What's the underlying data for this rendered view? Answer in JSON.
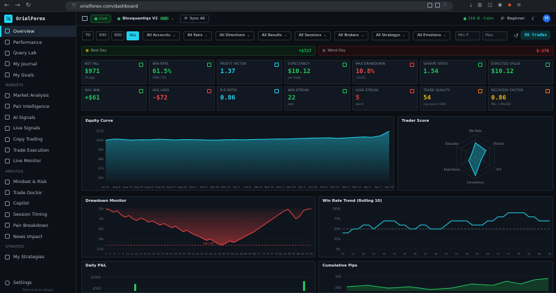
{
  "browser": {
    "url": "orielforex.com/dashboard"
  },
  "brand": {
    "name": "OrielForex"
  },
  "sidebar": {
    "top_items": [
      {
        "label": "Overview",
        "icon": "grid-icon",
        "active": true
      },
      {
        "label": "Performance",
        "icon": "chart-icon"
      },
      {
        "label": "Query Lab",
        "icon": "flask-icon"
      },
      {
        "label": "My Journal",
        "icon": "book-icon"
      },
      {
        "label": "My Goals",
        "icon": "target-icon"
      }
    ],
    "market_label": "MARKETS",
    "market_items": [
      {
        "label": "Market Analysis",
        "icon": "analysis-icon"
      },
      {
        "label": "Pair Intelligence",
        "icon": "brain-icon"
      },
      {
        "label": "AI Signals",
        "icon": "signal-icon"
      },
      {
        "label": "Live Signals",
        "icon": "pulse-icon"
      },
      {
        "label": "Copy Trading",
        "icon": "copy-icon"
      },
      {
        "label": "Trade Execution",
        "icon": "execute-icon"
      },
      {
        "label": "Live Monitor",
        "icon": "monitor-icon"
      }
    ],
    "analysis_label": "ANALYSIS",
    "analysis_items": [
      {
        "label": "Mindset & Risk",
        "icon": "mind-icon"
      },
      {
        "label": "Trade Doctor",
        "icon": "doctor-icon"
      },
      {
        "label": "Copilot",
        "icon": "copilot-icon"
      },
      {
        "label": "Session Timing",
        "icon": "clock-icon"
      },
      {
        "label": "Pair Breakdown",
        "icon": "breakdown-icon"
      },
      {
        "label": "News Impact",
        "icon": "news-icon"
      }
    ],
    "strategy_label": "STRATEGY",
    "strategy_items": [
      {
        "label": "My Strategies",
        "icon": "strategy-icon"
      }
    ],
    "settings_label": "Settings",
    "byline": "Press to ⌘ to collapse"
  },
  "topbar": {
    "live_label": "Live",
    "account_label": "Bloxquantiqx V2",
    "account_tag": "LIVE",
    "sync_label": "Sync All",
    "status_label": "116 ⚙ · Calm",
    "level_label": "Beginner",
    "avatar_initial": "M"
  },
  "filters": {
    "ranges": [
      "7D",
      "30D",
      "90D",
      "ALL"
    ],
    "active_range": "ALL",
    "dropdowns": [
      "All Accounts",
      "All Pairs",
      "All Directions",
      "All Results",
      "All Sessions",
      "All Brokers",
      "All Strategys",
      "All Emotions"
    ],
    "min_placeholder": "Min P",
    "max_placeholder": "Max",
    "trades_badge": "96 trades"
  },
  "best_day": {
    "label": "Best Day",
    "value": "+$727"
  },
  "worst_day": {
    "label": "Worst Day",
    "value": "$-270"
  },
  "kpis": [
    {
      "label": "NET P&L",
      "value": "$971",
      "sub": "14 pips",
      "color": "#22c55e",
      "icon_color": "#22c55e"
    },
    {
      "label": "WIN RATE",
      "value": "61.5%",
      "sub": "59W / 37L",
      "color": "#22c55e",
      "icon_color": "#22c55e"
    },
    {
      "label": "PROFIT FACTOR",
      "value": "1.37",
      "sub": "",
      "color": "#22d3ee",
      "icon_color": "#22d3ee"
    },
    {
      "label": "EXPECTANCY",
      "value": "$10.12",
      "sub": "per trade",
      "color": "#22c55e",
      "icon_color": "#22c55e"
    },
    {
      "label": "MAX DRAWDOWN",
      "value": "10.8%",
      "sub": "-$1121",
      "color": "#ef4444",
      "icon_color": "#ef4444"
    },
    {
      "label": "SHARPE RATIO",
      "value": "1.54",
      "sub": "",
      "color": "#22c55e",
      "icon_color": "#22c55e"
    },
    {
      "label": "EXPECTED VALUE",
      "value": "$10.12",
      "sub": "",
      "color": "#22c55e",
      "icon_color": "#22c55e"
    },
    {
      "label": "AVG WIN",
      "value": "+$61",
      "sub": "",
      "color": "#22c55e",
      "icon_color": "#22c55e"
    },
    {
      "label": "AVG LOSS",
      "value": "-$72",
      "sub": "",
      "color": "#ef4444",
      "icon_color": "#ef4444"
    },
    {
      "label": "R:R RATIO",
      "value": "0.86",
      "sub": "",
      "color": "#22d3ee",
      "icon_color": "#22d3ee"
    },
    {
      "label": "WIN STREAK",
      "value": "22",
      "sub": "best",
      "color": "#22c55e",
      "icon_color": "#22c55e"
    },
    {
      "label": "LOSS STREAK",
      "value": "5",
      "sub": "worst",
      "color": "#ef4444",
      "icon_color": "#ef4444"
    },
    {
      "label": "TRADE QUALITY",
      "value": "54",
      "sub": "avg score (/100)",
      "color": "#eab308",
      "icon_color": "#f97316"
    },
    {
      "label": "RECOVERY FACTOR",
      "value": "0.86",
      "sub": "P&L ÷ MaxDD",
      "color": "#eab308",
      "icon_color": "#f97316"
    }
  ],
  "equity_curve": {
    "title": "Equity Curve",
    "y_ticks": [
      "$11k",
      "$10k",
      "$9k",
      "$8k",
      "$7k",
      "$6k"
    ],
    "x_labels": [
      "Jul 31",
      "Aug 6",
      "Aug 12",
      "Aug 19",
      "Aug 22",
      "Aug 25",
      "Aug 27",
      "Aug 29",
      "Sep 2",
      "Sep 5",
      "Sep 10",
      "Sep 19",
      "Oct 2",
      "Oct 6",
      "Nov 6",
      "Nov 19",
      "Dec 3",
      "Dec 19",
      "Jan 2",
      "Jan 26",
      "Feb 6",
      "Feb 19",
      "Mar 6",
      "Mar 19",
      "Apr 2",
      "Apr 7",
      "Apr 10"
    ],
    "ylim": [
      5500,
      11000
    ],
    "values": [
      10000,
      10120,
      10080,
      10010,
      10050,
      10040,
      10100,
      10080,
      10030,
      10070,
      10060,
      10040,
      10010,
      10020,
      10050,
      10060,
      10040,
      10070,
      10090,
      10110,
      10140,
      10130,
      10170,
      10190,
      10230,
      10240,
      10260,
      10200,
      10250,
      10300,
      10350,
      10310,
      10480,
      10971
    ]
  },
  "trader_score": {
    "title": "Trader Score",
    "axes": [
      "Win Rate",
      "P.Factor",
      "R:R",
      "Consistency",
      "Expectancy",
      "Discipline"
    ],
    "values": [
      62,
      55,
      30,
      85,
      35,
      20
    ]
  },
  "drawdown": {
    "title": "Drawdown Monitor",
    "y_ticks": [
      "0%",
      "-3%",
      "-6%",
      "-9%",
      "-12%"
    ],
    "max_label": "Max DD",
    "max_dd": -10.8,
    "ylim": [
      -12,
      0
    ],
    "values": [
      0,
      -0.3,
      -1.0,
      -0.6,
      -1.8,
      -2.5,
      -2.0,
      -3.0,
      -3.5,
      -2.8,
      -3.2,
      -4.0,
      -3.6,
      -4.2,
      -4.8,
      -4.4,
      -5.0,
      -5.6,
      -5.2,
      -6.0,
      -6.8,
      -6.4,
      -7.2,
      -7.8,
      -8.2,
      -8.8,
      -9.4,
      -9.0,
      -9.8,
      -10.4,
      -10.8,
      -10.2,
      -9.6,
      -10.0,
      -9.4,
      -8.8,
      -8.2,
      -7.6,
      -7.0,
      -6.2,
      -5.4,
      -4.6,
      -3.8,
      -3.0,
      -2.2,
      -1.4,
      -0.6,
      -0.2,
      -1.5,
      -3.0,
      -2.2,
      -0.5,
      -0.1,
      0
    ],
    "x_labels": [
      "1",
      "3",
      "5",
      "7",
      "9",
      "11",
      "13",
      "15",
      "17",
      "19",
      "21",
      "23",
      "25",
      "27",
      "29",
      "31",
      "33",
      "35",
      "37",
      "39",
      "41",
      "43",
      "45",
      "47",
      "49",
      "51",
      "53",
      "55",
      "57",
      "59",
      "61",
      "63",
      "65",
      "67",
      "69",
      "71",
      "73",
      "75",
      "77",
      "79",
      "81",
      "83",
      "85",
      "87",
      "89",
      "91",
      "93",
      "95"
    ]
  },
  "win_rate_trend": {
    "title": "Win Rate Trend (Rolling 10)",
    "y_ticks": [
      "100%",
      "75%",
      "50%",
      "25%",
      "0%"
    ],
    "ylim": [
      0,
      100
    ],
    "reference": 50,
    "values": [
      40,
      40,
      50,
      50,
      60,
      60,
      50,
      60,
      70,
      70,
      70,
      60,
      60,
      50,
      50,
      60,
      60,
      50,
      50,
      50,
      60,
      70,
      70,
      70,
      70,
      60,
      60,
      60,
      70,
      70,
      80,
      80,
      90,
      90,
      90,
      90,
      80,
      80,
      70,
      70,
      70
    ]
  },
  "daily_pnl": {
    "title": "Daily P&L",
    "y_ticks": [
      "$1000",
      "$500"
    ]
  },
  "cumulative_pips": {
    "title": "Cumulative Pips",
    "y_ticks": [
      "200",
      "-200"
    ]
  }
}
